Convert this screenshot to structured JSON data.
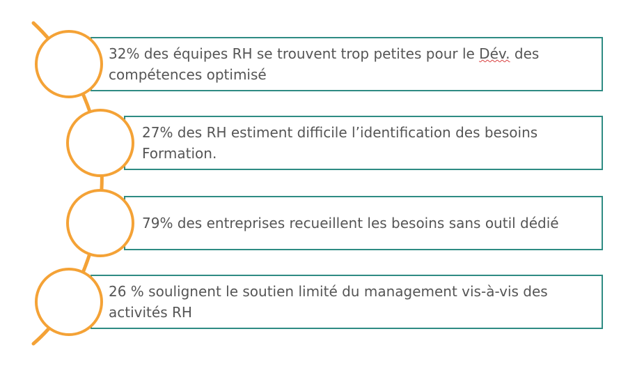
{
  "items": [
    {
      "text_before": "32% des équipes RH se trouvent trop petites pour le ",
      "text_marked": "Dév.",
      "text_after": " des compétences optimisé"
    },
    {
      "text": "27% des RH estiment difficile l’identification des besoins Formation."
    },
    {
      "text": "79% des entreprises recueillent les besoins sans outil dédié"
    },
    {
      "text": "26 % soulignent le soutien limité du management vis-à-vis des activités RH"
    }
  ],
  "colors": {
    "accent_orange": "#f4a236",
    "border_teal": "#2e8b83",
    "text_gray": "#555555",
    "spellcheck_red": "#d94040"
  }
}
